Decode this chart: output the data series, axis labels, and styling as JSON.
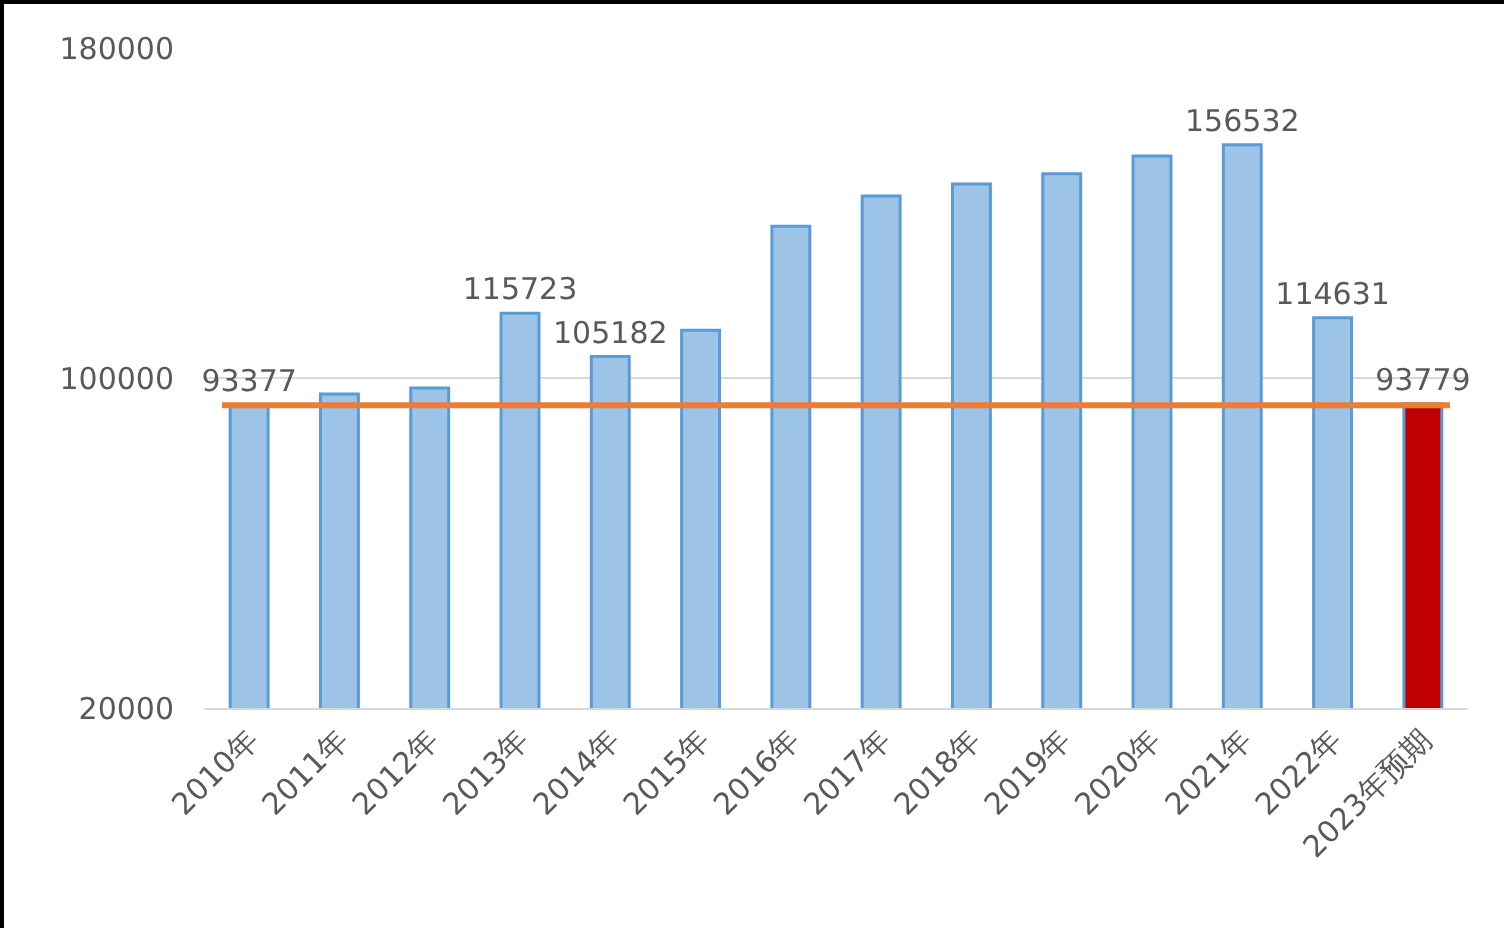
{
  "chart_data": {
    "type": "bar",
    "categories": [
      "2010年",
      "2011年",
      "2012年",
      "2013年",
      "2014年",
      "2015年",
      "2016年",
      "2017年",
      "2018年",
      "2019年",
      "2020年",
      "2021年",
      "2022年",
      "2023年预期"
    ],
    "values": [
      93377,
      96100,
      97600,
      115723,
      105182,
      111600,
      136800,
      144100,
      147000,
      149500,
      153800,
      156532,
      114631,
      93779
    ],
    "value_labels": [
      "93377",
      null,
      null,
      "115723",
      "105182",
      null,
      null,
      null,
      null,
      null,
      null,
      "156532",
      "114631",
      "93779"
    ],
    "colors": [
      "#9dc3e6",
      "#9dc3e6",
      "#9dc3e6",
      "#9dc3e6",
      "#9dc3e6",
      "#9dc3e6",
      "#9dc3e6",
      "#9dc3e6",
      "#9dc3e6",
      "#9dc3e6",
      "#9dc3e6",
      "#9dc3e6",
      "#9dc3e6",
      "#c00000"
    ],
    "ylim": [
      20000,
      180000
    ],
    "yticks": [
      20000,
      100000,
      180000
    ],
    "grid": "y",
    "ref_lines": [
      {
        "axis": "y",
        "value": 93377,
        "color": "#ed7d31"
      }
    ]
  }
}
